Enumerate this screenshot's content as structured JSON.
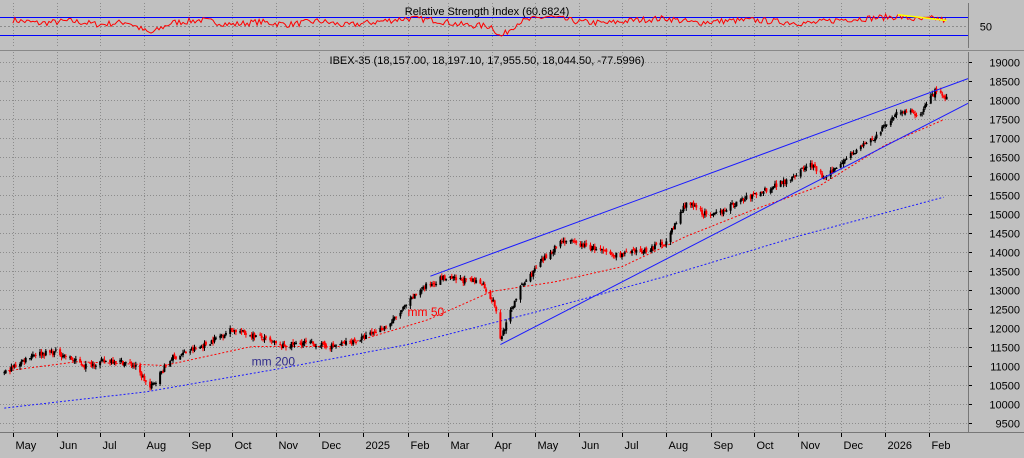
{
  "colors": {
    "background": "#c0c0c0",
    "grid": "#8c8c8c",
    "rsi_line": "#ff0000",
    "rsi_bands": "#0000ff",
    "up_candle": "#000000",
    "down_candle": "#ff0000",
    "mm50": "#ff0000",
    "mm200": "#1a1aff",
    "trendline": "#1a1aff",
    "rsi_trendline": "#ffff00",
    "text": "#000000",
    "mm200_label": "#2f2a8a"
  },
  "chart_data": [
    {
      "type": "line",
      "title": "Relative Strength Index (60.6824)",
      "y_ticks": [
        50
      ],
      "ylim": [
        0,
        100
      ],
      "bands": [
        30,
        70
      ],
      "x": [
        "2024-05-01",
        "2024-05-20",
        "2024-06-10",
        "2024-07-01",
        "2024-07-20",
        "2024-08-05",
        "2024-08-20",
        "2024-09-10",
        "2024-10-01",
        "2024-10-20",
        "2024-11-10",
        "2024-12-01",
        "2024-12-20",
        "2025-01-10",
        "2025-02-01",
        "2025-02-20",
        "2025-03-10",
        "2025-04-01",
        "2025-04-07",
        "2025-04-20",
        "2025-05-10",
        "2025-06-01",
        "2025-06-20",
        "2025-07-10",
        "2025-08-01",
        "2025-08-20",
        "2025-09-10",
        "2025-10-01",
        "2025-10-20",
        "2025-11-10",
        "2025-12-01",
        "2025-12-20",
        "2026-01-10",
        "2026-01-25",
        "2026-02-05",
        "2026-02-13"
      ],
      "values": [
        62,
        55,
        60,
        52,
        58,
        32,
        56,
        62,
        52,
        58,
        52,
        60,
        50,
        58,
        66,
        62,
        52,
        48,
        24,
        58,
        70,
        58,
        55,
        62,
        66,
        56,
        60,
        62,
        58,
        55,
        63,
        66,
        70,
        62,
        66,
        60.7
      ],
      "annotations": [
        {
          "type": "trendline",
          "color": "yellow",
          "from": [
            "2026-01-10",
            74
          ],
          "to": [
            "2026-02-13",
            61
          ]
        }
      ]
    },
    {
      "type": "candlestick",
      "title": "IBEX-35 (18,157.00, 18,197.10, 17,955.50, 18,044.50, -77.5996)",
      "y_ticks": [
        9500,
        10000,
        10500,
        11000,
        11500,
        12000,
        12500,
        13000,
        13500,
        14000,
        14500,
        15000,
        15500,
        16000,
        16500,
        17000,
        17500,
        18000,
        18500,
        19000
      ],
      "ylim": [
        9250,
        19250
      ],
      "x_ticks": [
        "May",
        "Jun",
        "Jul",
        "Aug",
        "Sep",
        "Oct",
        "Nov",
        "Dec",
        "2025",
        "Feb",
        "Mar",
        "Apr",
        "May",
        "Jun",
        "Jul",
        "Aug",
        "Sep",
        "Oct",
        "Nov",
        "Dec",
        "2026",
        "Feb"
      ],
      "price_path": {
        "x": [
          "2024-04-25",
          "2024-05-15",
          "2024-06-01",
          "2024-06-20",
          "2024-07-10",
          "2024-07-25",
          "2024-08-05",
          "2024-08-20",
          "2024-09-10",
          "2024-10-01",
          "2024-10-20",
          "2024-11-05",
          "2024-11-20",
          "2024-12-10",
          "2024-12-31",
          "2025-01-20",
          "2025-02-10",
          "2025-02-25",
          "2025-03-10",
          "2025-03-25",
          "2025-04-03",
          "2025-04-07",
          "2025-04-20",
          "2025-05-05",
          "2025-05-20",
          "2025-06-10",
          "2025-06-25",
          "2025-07-15",
          "2025-08-01",
          "2025-08-15",
          "2025-09-01",
          "2025-09-20",
          "2025-10-05",
          "2025-10-25",
          "2025-11-10",
          "2025-11-20",
          "2025-12-05",
          "2025-12-25",
          "2026-01-10",
          "2026-01-25",
          "2026-02-05",
          "2026-02-13"
        ],
        "close": [
          10800,
          11300,
          11350,
          11000,
          11150,
          11000,
          10400,
          11200,
          11500,
          11950,
          11750,
          11500,
          11600,
          11500,
          11700,
          12100,
          13000,
          13300,
          13250,
          13200,
          12600,
          11700,
          13000,
          13700,
          14300,
          14100,
          13900,
          14000,
          14250,
          15300,
          14900,
          15300,
          15550,
          15900,
          16300,
          15900,
          16500,
          17000,
          17700,
          17600,
          18200,
          18044.5
        ]
      },
      "mm50": {
        "x": [
          "2024-04-25",
          "2024-06-15",
          "2024-08-15",
          "2024-10-15",
          "2024-12-15",
          "2025-02-15",
          "2025-04-01",
          "2025-05-15",
          "2025-07-01",
          "2025-08-15",
          "2025-10-01",
          "2025-11-15",
          "2026-01-01",
          "2026-02-13"
        ],
        "values": [
          10850,
          11100,
          11000,
          11500,
          11500,
          12200,
          12950,
          13200,
          13600,
          14400,
          15100,
          15700,
          16800,
          17500
        ]
      },
      "mm200": {
        "x": [
          "2024-04-25",
          "2024-08-01",
          "2024-11-01",
          "2025-02-01",
          "2025-05-01",
          "2025-08-01",
          "2025-11-01",
          "2026-02-13"
        ],
        "values": [
          9880,
          10300,
          10900,
          11550,
          12400,
          13350,
          14400,
          15450
        ]
      },
      "trendlines": [
        {
          "name": "upper",
          "from": [
            "2025-02-17",
            13350
          ],
          "to": [
            "2026-02-28",
            18550
          ]
        },
        {
          "name": "lower",
          "from": [
            "2025-04-07",
            11550
          ],
          "to": [
            "2026-02-28",
            17900
          ]
        }
      ],
      "annotations": [
        {
          "text": "mm 50",
          "at": [
            "2025-02-01",
            12300
          ],
          "color": "red"
        },
        {
          "text": "mm 200",
          "at": [
            "2024-10-15",
            11000
          ],
          "color": "purple"
        }
      ]
    }
  ]
}
